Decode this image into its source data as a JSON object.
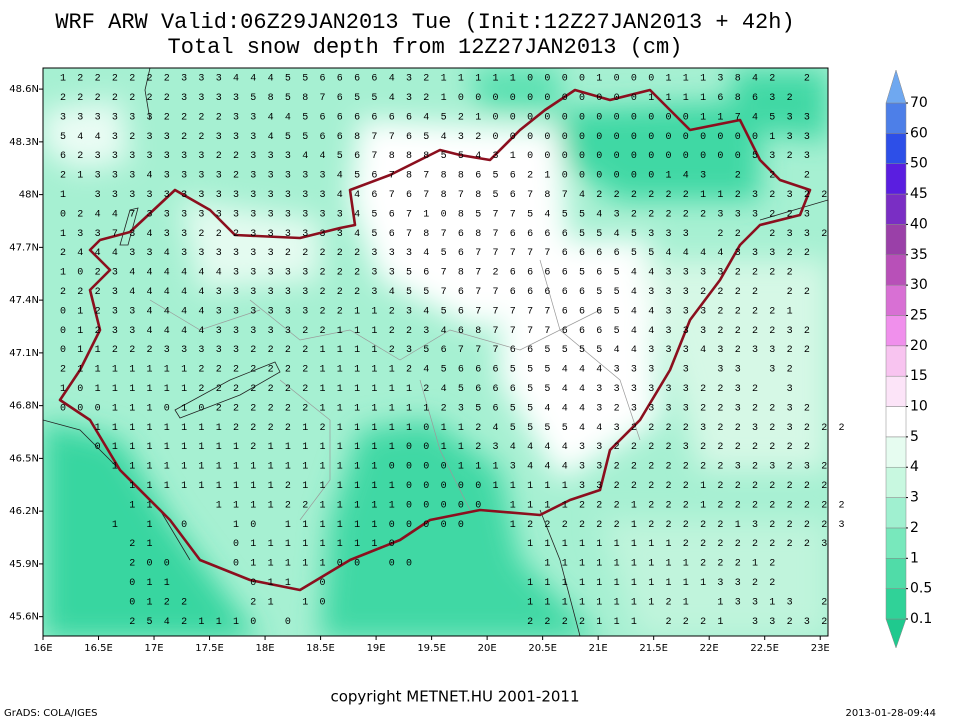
{
  "header": {
    "title": "WRF ARW Valid:06Z29JAN2013 Tue (Init:12Z27JAN2013 + 42h)",
    "subtitle": "Total snow depth from 12Z27JAN2013 (cm)"
  },
  "map": {
    "xlim": [
      16,
      23.07
    ],
    "ylim": [
      45.49,
      48.72
    ],
    "xticks": [
      {
        "value": 16,
        "label": "16E"
      },
      {
        "value": 16.5,
        "label": "16.5E"
      },
      {
        "value": 17,
        "label": "17E"
      },
      {
        "value": 17.5,
        "label": "17.5E"
      },
      {
        "value": 18,
        "label": "18E"
      },
      {
        "value": 18.5,
        "label": "18.5E"
      },
      {
        "value": 19,
        "label": "19E"
      },
      {
        "value": 19.5,
        "label": "19.5E"
      },
      {
        "value": 20,
        "label": "20E"
      },
      {
        "value": 20.5,
        "label": "20.5E"
      },
      {
        "value": 21,
        "label": "21E"
      },
      {
        "value": 21.5,
        "label": "21.5E"
      },
      {
        "value": 22,
        "label": "22E"
      },
      {
        "value": 22.5,
        "label": "22.5E"
      },
      {
        "value": 23,
        "label": "23E"
      }
    ],
    "yticks": [
      {
        "value": 48.6,
        "label": "48.6N"
      },
      {
        "value": 48.3,
        "label": "48.3N"
      },
      {
        "value": 48,
        "label": "48N"
      },
      {
        "value": 47.7,
        "label": "47.7N"
      },
      {
        "value": 47.4,
        "label": "47.4N"
      },
      {
        "value": 47.1,
        "label": "47.1N"
      },
      {
        "value": 46.8,
        "label": "46.8N"
      },
      {
        "value": 46.5,
        "label": "46.5N"
      },
      {
        "value": 46.2,
        "label": "46.2N"
      },
      {
        "value": 45.9,
        "label": "45.9N"
      },
      {
        "value": 45.6,
        "label": "45.6N"
      }
    ],
    "grid_rows": [
      "122222233344455666643211111000010001113842 2 ",
      "2222222333358587655432100000000000111168632  ",
      "33333322223344566666645210000000000001174533 ",
      "54432332233345566877654320000000000000000133 ",
      "62333333322333445678885543100000000000005323 ",
      "21333433332333334567878865621000000143 2 2 2 ",
      "1 3333333333333344676787856787422222211232322",
      "02447333333333333456710857754554322222333223 ",
      "1337343322233333345678768766665545333 22 2332",
      "24443343333332222233345677777666655444433322 ",
      "1023444444333332223356787266665654433332222  ",
      "22234444433333322234557677666665543332222 22 ",
      "0123344443333332211234567777766654433322221  ",
      "01233444433333221112234687777666544333222232 ",
      "01122233333222211112356777665555443334323322 ",
      "21111111222222211111245666555444333 3 33 32  ",
      "10111111222222211111124566655443333332232 3  ",
      "00011101022222211111112356554443233332232232 ",
      "  11111111222212111110112455554432222322323222",
      "  011111111211111111001123444433222232222222  ",
      "   111111111111111100001113444332222222323232 ",
      "    11111111121111110000011111332222212222222 ",
      "    11   1111221111100000 11112221222122222222",
      "   1 1 0  10 11111100000  12222221222221322223",
      "    21    0111111110       111111111222222223 ",
      "    200   01111100 00       11111111122212    ",
      "    011    011 0           111111111113322    ",
      "    0122   21 10           1111111121 13313 2 ",
      "    25421110 0             2222111 2221 33232 "
    ]
  },
  "colorbar": {
    "levels": [
      0.1,
      0.5,
      1,
      2,
      3,
      4,
      5,
      10,
      15,
      20,
      25,
      30,
      35,
      40,
      45,
      50,
      60,
      70
    ],
    "colors": [
      "#1fc98e",
      "#30d298",
      "#50dca8",
      "#78e8bc",
      "#a0f0d0",
      "#c8f8e0",
      "#e6fcf0",
      "#ffffff",
      "#fce4f8",
      "#f8c4f0",
      "#f090ec",
      "#d870d4",
      "#b850b8",
      "#9a40a8",
      "#7a2ec4",
      "#5a1ee0",
      "#2d4fe8",
      "#4d7fe8",
      "#6fa8f0"
    ]
  },
  "footer": {
    "copyright": "copyright METNET.HU 2001-2011",
    "software": "GrADS: COLA/IGES",
    "timestamp": "2013-01-28-09:44"
  }
}
